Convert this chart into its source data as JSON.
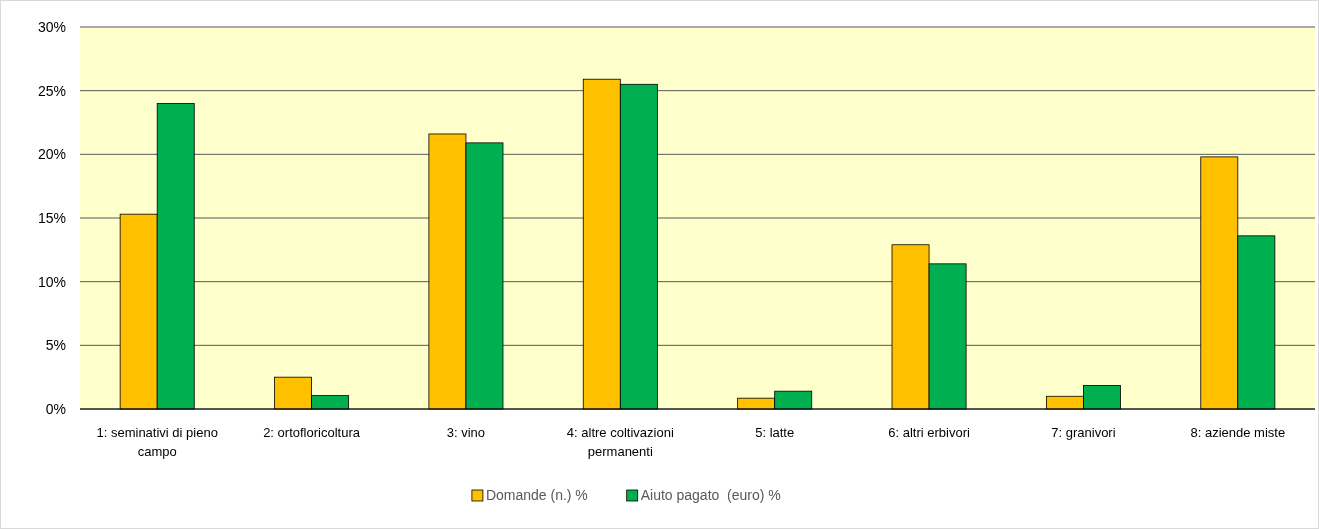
{
  "chart_data": {
    "type": "bar",
    "categories": [
      "1: seminativi di pieno campo",
      "2: ortofloricoltura",
      "3: vino",
      "4: altre coltivazioni permanenti",
      "5: latte",
      "6: altri erbivori",
      "7: granivori",
      "8: aziende miste"
    ],
    "series": [
      {
        "name": "Domande (n.) %",
        "color": "#ffc000",
        "values": [
          15.3,
          2.5,
          21.6,
          25.9,
          0.85,
          12.9,
          1.0,
          19.8
        ]
      },
      {
        "name": "Aiuto pagato  (euro) %",
        "color": "#00b050",
        "values": [
          24.0,
          1.05,
          20.9,
          25.5,
          1.4,
          11.4,
          1.85,
          13.6
        ]
      }
    ],
    "ylim": [
      0,
      30
    ],
    "yticks": [
      {
        "value": 0,
        "label": "0%"
      },
      {
        "value": 5,
        "label": "5%"
      },
      {
        "value": 10,
        "label": "10%"
      },
      {
        "value": 15,
        "label": "15%"
      },
      {
        "value": 20,
        "label": "20%"
      },
      {
        "value": 25,
        "label": "25%"
      },
      {
        "value": 30,
        "label": "30%"
      }
    ],
    "grid": "y",
    "legend": "bottom"
  }
}
